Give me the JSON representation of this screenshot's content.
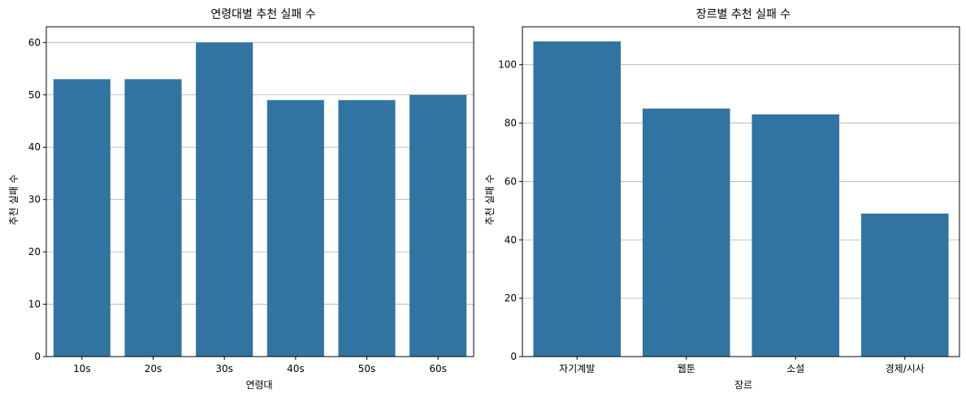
{
  "chart_data": [
    {
      "type": "bar",
      "title": "연령대별 추천 실패 수",
      "xlabel": "연령대",
      "ylabel": "추천 실패 수",
      "categories": [
        "10s",
        "20s",
        "30s",
        "40s",
        "50s",
        "60s"
      ],
      "values": [
        53,
        53,
        60,
        49,
        49,
        50
      ],
      "ylim": [
        0,
        63
      ],
      "yticks": [
        0,
        10,
        20,
        30,
        40,
        50,
        60
      ],
      "grid": "y",
      "color": "#3274a1"
    },
    {
      "type": "bar",
      "title": "장르별 추천 실패 수",
      "xlabel": "장르",
      "ylabel": "추천 실패 수",
      "categories": [
        "자기계발",
        "웹툰",
        "소설",
        "경제/시사"
      ],
      "values": [
        108,
        85,
        83,
        49
      ],
      "ylim": [
        0,
        113
      ],
      "yticks": [
        0,
        20,
        40,
        60,
        80,
        100
      ],
      "grid": "y",
      "color": "#3274a1"
    }
  ]
}
